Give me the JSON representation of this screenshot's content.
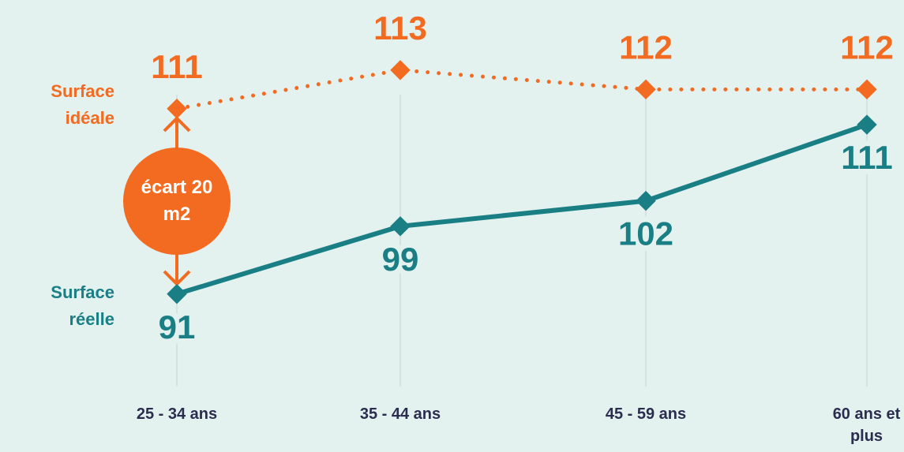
{
  "chart_data": {
    "type": "line",
    "categories": [
      "25 - 34 ans",
      "35 - 44 ans",
      "45 - 59 ans",
      "60 ans et plus"
    ],
    "series": [
      {
        "name": "Surface idéale",
        "color": "#f26b21",
        "values": [
          111,
          113,
          112,
          112
        ],
        "axis": "y2",
        "style": "dotted"
      },
      {
        "name": "Surface réelle",
        "color": "#1a7f85",
        "values": [
          91,
          99,
          102,
          111
        ]
      }
    ],
    "ylim": [
      81,
      122
    ],
    "y2lim": [
      97,
      115
    ],
    "annotation": "écart 20 m2"
  }
}
